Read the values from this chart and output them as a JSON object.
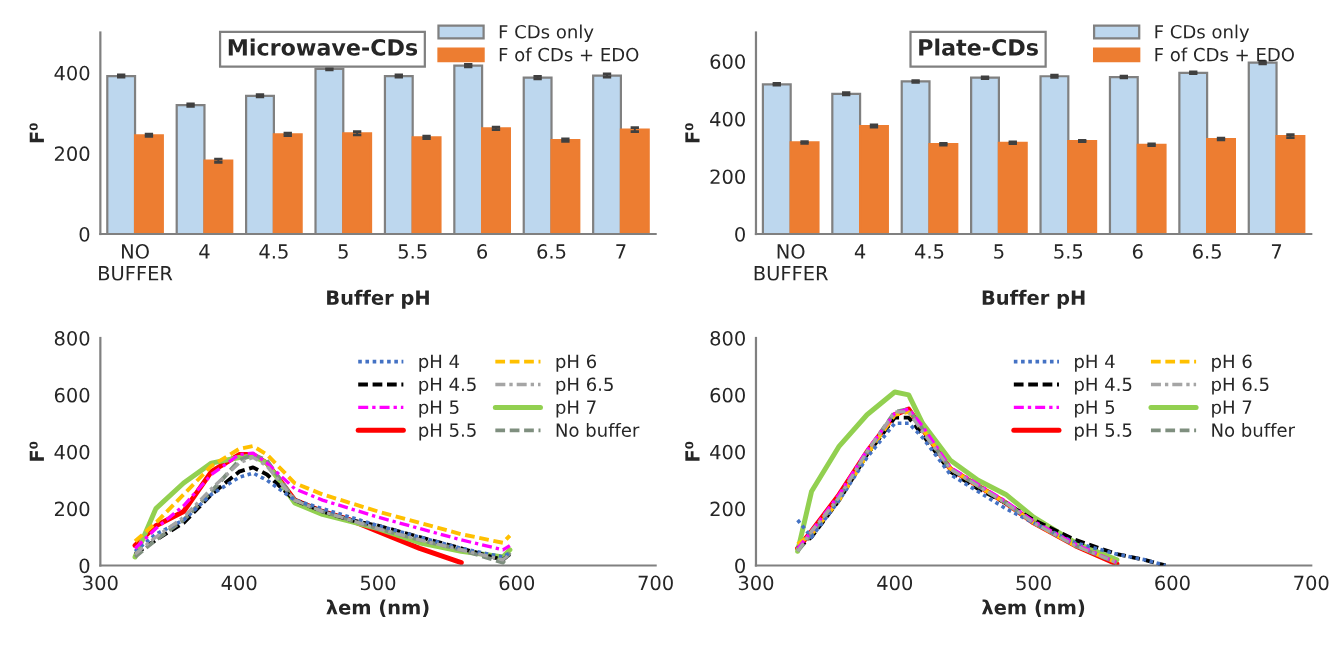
{
  "chart_data": [
    {
      "type": "bar",
      "title": "Microwave-CDs",
      "xlabel": "Buffer pH",
      "ylabel": "F⁰",
      "categories": [
        "NO\nBUFFER",
        "4",
        "4.5",
        "5",
        "5.5",
        "6",
        "6.5",
        "7"
      ],
      "ylim": [
        0,
        500
      ],
      "yticks": [
        0,
        200,
        400
      ],
      "legend": "top right",
      "series": [
        {
          "name": "F CDs only",
          "color": "#bdd7ee",
          "values": [
            392,
            320,
            343,
            410,
            392,
            418,
            388,
            393
          ],
          "errors": [
            3,
            3,
            3,
            3,
            3,
            3,
            3,
            4
          ]
        },
        {
          "name": "F of CDs + EDO",
          "color": "#ed7d31",
          "values": [
            245,
            182,
            247,
            250,
            240,
            262,
            233,
            259
          ],
          "errors": [
            3,
            4,
            3,
            4,
            3,
            3,
            3,
            5
          ]
        }
      ]
    },
    {
      "type": "bar",
      "title": "Plate-CDs",
      "xlabel": "Buffer pH",
      "ylabel": "F⁰",
      "categories": [
        "NO\nBUFFER",
        "4",
        "4.5",
        "5",
        "5.5",
        "6",
        "6.5",
        "7"
      ],
      "ylim": [
        0,
        700
      ],
      "yticks": [
        0,
        200,
        400,
        600
      ],
      "legend": "top right",
      "series": [
        {
          "name": "F CDs only",
          "color": "#bdd7ee",
          "values": [
            520,
            487,
            530,
            543,
            548,
            545,
            560,
            595
          ],
          "errors": [
            3,
            4,
            3,
            3,
            4,
            3,
            3,
            4
          ]
        },
        {
          "name": "F of CDs + EDO",
          "color": "#ed7d31",
          "values": [
            318,
            375,
            312,
            317,
            323,
            310,
            330,
            340
          ],
          "errors": [
            3,
            4,
            3,
            3,
            2,
            3,
            3,
            5
          ]
        }
      ]
    },
    {
      "type": "line",
      "xlabel": "λem (nm)",
      "ylabel": "F⁰",
      "xlim": [
        300,
        700
      ],
      "xticks": [
        300,
        400,
        500,
        600,
        700
      ],
      "ylim": [
        0,
        800
      ],
      "yticks": [
        0,
        200,
        400,
        600,
        800
      ],
      "legend": "top right",
      "x": [
        325,
        340,
        360,
        380,
        400,
        410,
        420,
        440,
        460,
        480,
        500,
        530,
        560,
        590,
        595
      ],
      "series": [
        {
          "name": "pH 4",
          "color": "#4472c4",
          "line_style": "dotted",
          "values": [
            50,
            110,
            160,
            250,
            310,
            325,
            300,
            230,
            200,
            170,
            140,
            100,
            60,
            30,
            45
          ]
        },
        {
          "name": "pH 4.5",
          "color": "#000000",
          "line_style": "dashed",
          "values": [
            40,
            90,
            150,
            250,
            330,
            345,
            320,
            230,
            190,
            160,
            140,
            100,
            60,
            20,
            40
          ]
        },
        {
          "name": "pH 5",
          "color": "#ff00ff",
          "line_style": "dashdot",
          "values": [
            60,
            130,
            210,
            320,
            390,
            395,
            360,
            270,
            230,
            200,
            170,
            130,
            90,
            55,
            70
          ]
        },
        {
          "name": "pH 5.5",
          "color": "#ff0000",
          "line_style": "solid",
          "values": [
            70,
            140,
            190,
            330,
            390,
            390,
            360,
            230,
            190,
            160,
            120,
            60,
            10,
            null,
            null
          ]
        },
        {
          "name": "pH 6",
          "color": "#ffc000",
          "line_style": "dashed",
          "values": [
            85,
            150,
            250,
            350,
            410,
            420,
            390,
            290,
            250,
            220,
            190,
            150,
            110,
            80,
            105
          ]
        },
        {
          "name": "pH 6.5",
          "color": "#a5a5a5",
          "line_style": "dashdot",
          "values": [
            40,
            100,
            170,
            270,
            360,
            380,
            350,
            230,
            190,
            160,
            130,
            90,
            55,
            20,
            40
          ]
        },
        {
          "name": "pH 7",
          "color": "#92d050",
          "line_style": "solid",
          "values": [
            30,
            200,
            290,
            360,
            380,
            385,
            360,
            220,
            180,
            155,
            130,
            80,
            50,
            30,
            55
          ]
        },
        {
          "name": "No buffer",
          "color": "#7f8f7f",
          "line_style": "dashed",
          "values": [
            30,
            90,
            160,
            260,
            370,
            390,
            370,
            230,
            190,
            160,
            130,
            90,
            55,
            10,
            45
          ]
        }
      ]
    },
    {
      "type": "line",
      "xlabel": "λem (nm)",
      "ylabel": "F⁰",
      "xlim": [
        300,
        700
      ],
      "xticks": [
        300,
        400,
        500,
        600,
        700
      ],
      "ylim": [
        0,
        800
      ],
      "yticks": [
        0,
        200,
        400,
        600,
        800
      ],
      "legend": "top right",
      "x": [
        330,
        340,
        360,
        380,
        400,
        410,
        420,
        440,
        460,
        480,
        500,
        530,
        560,
        580,
        595
      ],
      "series": [
        {
          "name": "pH 4",
          "color": "#4472c4",
          "line_style": "dotted",
          "values": [
            160,
            100,
            230,
            380,
            500,
            500,
            450,
            320,
            260,
            200,
            150,
            80,
            40,
            20,
            0
          ]
        },
        {
          "name": "pH 4.5",
          "color": "#000000",
          "line_style": "dashed",
          "values": [
            60,
            100,
            230,
            390,
            520,
            520,
            460,
            330,
            270,
            220,
            160,
            90,
            40,
            20,
            0
          ]
        },
        {
          "name": "pH 5",
          "color": "#ff00ff",
          "line_style": "dashdot",
          "values": [
            60,
            120,
            250,
            405,
            535,
            550,
            490,
            345,
            285,
            225,
            155,
            75,
            10,
            null,
            null
          ]
        },
        {
          "name": "pH 5.5",
          "color": "#ff0000",
          "line_style": "solid",
          "values": [
            60,
            120,
            250,
            400,
            530,
            550,
            480,
            340,
            280,
            220,
            150,
            70,
            5,
            null,
            null
          ]
        },
        {
          "name": "pH 6",
          "color": "#ffc000",
          "line_style": "dashed",
          "values": [
            75,
            110,
            230,
            390,
            530,
            540,
            480,
            340,
            280,
            220,
            150,
            70,
            10,
            null,
            null
          ]
        },
        {
          "name": "pH 6.5",
          "color": "#a5a5a5",
          "line_style": "dashdot",
          "values": [
            50,
            120,
            240,
            400,
            540,
            540,
            470,
            340,
            280,
            220,
            150,
            70,
            10,
            null,
            null
          ]
        },
        {
          "name": "pH 7",
          "color": "#92d050",
          "line_style": "solid",
          "values": [
            50,
            260,
            420,
            530,
            610,
            600,
            500,
            370,
            300,
            250,
            170,
            80,
            20,
            null,
            null
          ]
        },
        {
          "name": "No buffer",
          "color": "#7f8f7f",
          "line_style": "dashed",
          "values": [
            50,
            110,
            240,
            400,
            540,
            550,
            480,
            340,
            280,
            220,
            150,
            70,
            10,
            null,
            null
          ]
        }
      ]
    }
  ]
}
